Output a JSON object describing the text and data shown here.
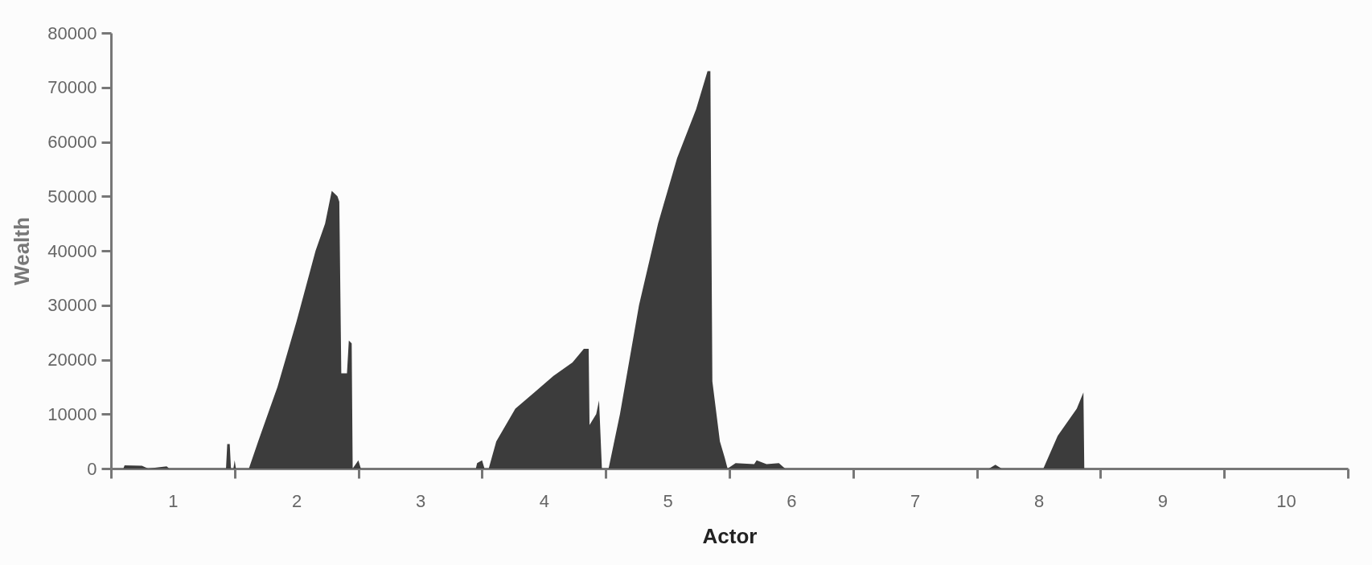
{
  "chart_data": {
    "type": "area",
    "xlabel": "Actor",
    "ylabel": "Wealth",
    "x": [
      0.5,
      0.6,
      0.61,
      0.75,
      0.8,
      0.95,
      0.97,
      1.43,
      1.44,
      1.46,
      1.47,
      1.49,
      1.5,
      1.51,
      1.615,
      1.69,
      1.846,
      2.0,
      2.154,
      2.231,
      2.285,
      2.331,
      2.346,
      2.362,
      2.408,
      2.423,
      2.446,
      2.454,
      2.5,
      2.52,
      3.45,
      3.46,
      3.5,
      3.52,
      3.554,
      3.615,
      3.769,
      3.923,
      4.077,
      4.231,
      4.323,
      4.362,
      4.369,
      4.423,
      4.446,
      4.469,
      4.523,
      4.615,
      4.769,
      4.923,
      5.077,
      5.231,
      5.323,
      5.346,
      5.362,
      5.423,
      5.462,
      5.485,
      5.55,
      5.7,
      5.72,
      5.8,
      5.9,
      5.95,
      7.6,
      7.65,
      7.7,
      8.038,
      8.154,
      8.308,
      8.362,
      8.369,
      10.5
    ],
    "values": [
      0,
      0,
      600,
      500,
      0,
      400,
      0,
      0,
      4500,
      4500,
      0,
      0,
      1500,
      0,
      0,
      5000,
      15000,
      27000,
      40000,
      45000,
      51000,
      50000,
      49000,
      17500,
      17500,
      23500,
      23000,
      0,
      1500,
      0,
      0,
      1000,
      1500,
      0,
      0,
      5000,
      11000,
      14000,
      17000,
      19500,
      22000,
      22000,
      8000,
      10000,
      12500,
      0,
      0,
      10000,
      30000,
      45000,
      57000,
      66000,
      73000,
      73000,
      16000,
      5000,
      2000,
      0,
      1000,
      800,
      1500,
      800,
      1000,
      0,
      0,
      700,
      0,
      0,
      6000,
      11000,
      14000,
      0,
      0
    ],
    "color": "#3c3c3c",
    "xlim": [
      0.5,
      10.5
    ],
    "xticks": [
      {
        "value": 0.5,
        "label": null
      },
      {
        "value": 1,
        "label": "1"
      },
      {
        "value": 1.5,
        "label": null
      },
      {
        "value": 2,
        "label": "2"
      },
      {
        "value": 2.5,
        "label": null
      },
      {
        "value": 3,
        "label": "3"
      },
      {
        "value": 3.5,
        "label": null
      },
      {
        "value": 4,
        "label": "4"
      },
      {
        "value": 4.5,
        "label": null
      },
      {
        "value": 5,
        "label": "5"
      },
      {
        "value": 5.5,
        "label": null
      },
      {
        "value": 6,
        "label": "6"
      },
      {
        "value": 6.5,
        "label": null
      },
      {
        "value": 7,
        "label": "7"
      },
      {
        "value": 7.5,
        "label": null
      },
      {
        "value": 8,
        "label": "8"
      },
      {
        "value": 8.5,
        "label": null
      },
      {
        "value": 9,
        "label": "9"
      },
      {
        "value": 9.5,
        "label": null
      },
      {
        "value": 10,
        "label": "10"
      },
      {
        "value": 10.5,
        "label": null
      }
    ],
    "ylim": [
      0,
      80000
    ],
    "yticks": [
      0,
      10000,
      20000,
      30000,
      40000,
      50000,
      60000,
      70000,
      80000
    ],
    "grid": false,
    "legend": false
  }
}
